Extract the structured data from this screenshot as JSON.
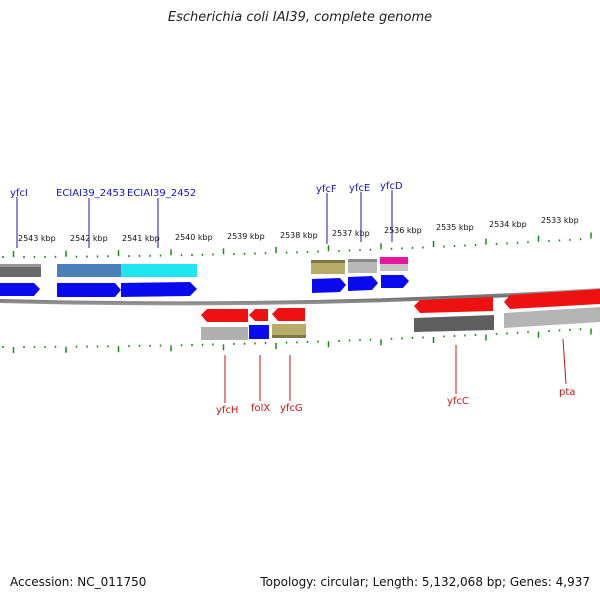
{
  "title": "Escherichia coli IAI39, complete genome",
  "footer": {
    "accession": "Accession: NC_011750",
    "stats": "Topology: circular; Length: 5,132,068 bp; Genes: 4,937"
  },
  "colors": {
    "backbone": "#808080",
    "tick": "#1a8a1a",
    "forward_label": "#1515c0",
    "reverse_label": "#cc1111",
    "cds_forward": "#0a0aee",
    "cds_reverse": "#ee1111"
  },
  "scale_labels": [
    "2543 kbp",
    "2542 kbp",
    "2541 kbp",
    "2540 kbp",
    "2539 kbp",
    "2538 kbp",
    "2537 kbp",
    "2536 kbp",
    "2535 kbp",
    "2534 kbp",
    "2533 kbp"
  ],
  "top_gene_labels": [
    "yfcI",
    "ECIAI39_2453",
    "ECIAI39_2452",
    "yfcF",
    "yfcE",
    "yfcD"
  ],
  "bottom_gene_labels": [
    "yfcH",
    "folX",
    "yfcG",
    "yfcC",
    "pta"
  ]
}
